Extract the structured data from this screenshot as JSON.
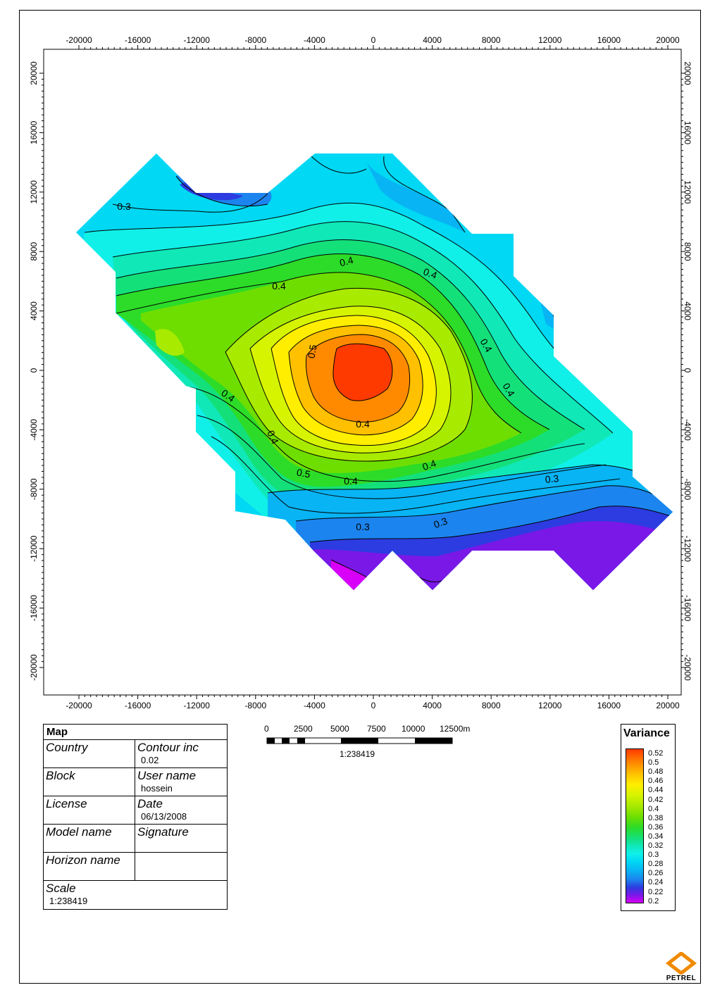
{
  "map": {
    "x_ticks": [
      "-20000",
      "-16000",
      "-12000",
      "-8000",
      "-4000",
      "0",
      "4000",
      "8000",
      "12000",
      "16000",
      "20000"
    ],
    "y_ticks": [
      "20000",
      "16000",
      "12000",
      "8000",
      "4000",
      "0",
      "-4000",
      "-8000",
      "-12000",
      "-16000",
      "-20000"
    ],
    "contour_labels": [
      "0.3",
      "0.4",
      "0.4",
      "0.4",
      "0.5",
      "0.4",
      "0.4",
      "0.4",
      "0.4",
      "0.5",
      "0.4",
      "0.4",
      "0.4",
      "0.3",
      "0.3",
      "0.3"
    ],
    "colors": {
      "v052": "#ff3a00",
      "v050": "#ff8a00",
      "v048": "#ffc000",
      "v046": "#ffee00",
      "v044": "#d6f400",
      "v042": "#a8ea00",
      "v040": "#6ede00",
      "v038": "#2cdc28",
      "v036": "#14e07a",
      "v034": "#10e8b8",
      "v032": "#10f0e8",
      "v030": "#00d8f4",
      "v028": "#08b4f4",
      "v026": "#1c84ee",
      "v024": "#2c3ce0",
      "v022": "#7a18e8",
      "v020": "#d800f8"
    }
  },
  "info_table": {
    "title": "Map",
    "country_label": "Country",
    "contour_label": "Contour inc",
    "contour_value": "0.02",
    "block_label": "Block",
    "username_label": "User name",
    "username_value": "hossein",
    "license_label": "License",
    "date_label": "Date",
    "date_value": "06/13/2008",
    "model_label": "Model name",
    "signature_label": "Signature",
    "horizon_label": "Horizon name",
    "scale_label": "Scale",
    "scale_value": "1:238419"
  },
  "scale_bar": {
    "labels": [
      "0",
      "2500",
      "5000",
      "7500",
      "10000",
      "12500m"
    ],
    "ratio": "1:238419"
  },
  "legend": {
    "title": "Variance",
    "labels": [
      "0.52",
      "0.5",
      "0.48",
      "0.46",
      "0.44",
      "0.42",
      "0.4",
      "0.38",
      "0.36",
      "0.34",
      "0.32",
      "0.3",
      "0.28",
      "0.26",
      "0.24",
      "0.22",
      "0.2"
    ]
  },
  "logo": {
    "text": "PETREL"
  }
}
